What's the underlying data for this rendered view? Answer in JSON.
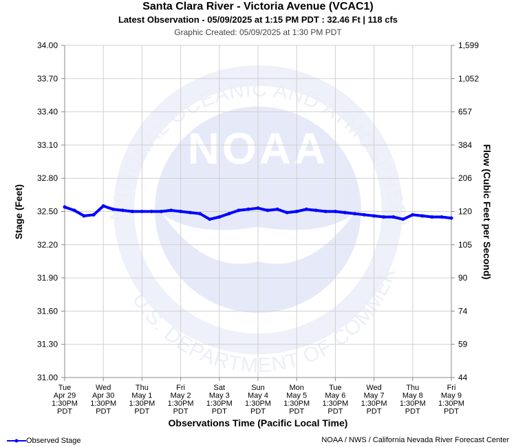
{
  "header": {
    "title": "Santa Clara River - Victoria Avenue (VCAC1)",
    "subtitle": "Latest Observation - 05/09/2025 at 1:15 PM PDT : 32.46 Ft | 118 cfs",
    "created": "Graphic Created: 05/09/2025 at 1:30 PM PDT"
  },
  "footer": {
    "legend_label": "Observed Stage",
    "credit": "NOAA / NWS / California Nevada River Forecast Center"
  },
  "watermark": {
    "logo_text": "NOAA",
    "ring_top": "NATIONAL OCEANIC AND ATMOSPHERIC ADMINISTRATION",
    "ring_bottom": "U.S. DEPARTMENT OF COMMERCE"
  },
  "colors": {
    "series": "#0000ff",
    "grid": "#d0d0d0",
    "watermark": "#e6eaf8"
  },
  "chart_data": {
    "type": "line",
    "ylabel": "Stage (Feet)",
    "ylabel_right": "Flow (Cubic Feet per Second)",
    "xlabel": "Observations Time (Pacific Local Time)",
    "ylim": [
      31.0,
      34.0
    ],
    "y_ticks": [
      "31.00",
      "31.30",
      "31.60",
      "31.90",
      "32.20",
      "32.50",
      "32.80",
      "33.10",
      "33.40",
      "33.70",
      "34.00"
    ],
    "y_ticks_right": [
      "44",
      "59",
      "74",
      "90",
      "105",
      "120",
      "206",
      "384",
      "657",
      "1,052",
      "1,599"
    ],
    "x_ticks": [
      [
        "Tue",
        "Apr 29",
        "1:30PM",
        "PDT"
      ],
      [
        "Wed",
        "Apr 30",
        "1:30PM",
        "PDT"
      ],
      [
        "Thu",
        "May 1",
        "1:30PM",
        "PDT"
      ],
      [
        "Fri",
        "May 2",
        "1:30PM",
        "PDT"
      ],
      [
        "Sat",
        "May 3",
        "1:30PM",
        "PDT"
      ],
      [
        "Sun",
        "May 4",
        "1:30PM",
        "PDT"
      ],
      [
        "Mon",
        "May 5",
        "1:30PM",
        "PDT"
      ],
      [
        "Tue",
        "May 6",
        "1:30PM",
        "PDT"
      ],
      [
        "Wed",
        "May 7",
        "1:30PM",
        "PDT"
      ],
      [
        "Thu",
        "May 8",
        "1:30PM",
        "PDT"
      ],
      [
        "Fri",
        "May 9",
        "1:30PM",
        "PDT"
      ]
    ],
    "grid": true,
    "legend": "bottom-left",
    "series": [
      {
        "name": "Observed Stage",
        "x_days": [
          0,
          0.25,
          0.5,
          0.75,
          1.0,
          1.25,
          1.5,
          1.75,
          2.0,
          2.25,
          2.5,
          2.75,
          3.0,
          3.25,
          3.5,
          3.75,
          4.0,
          4.25,
          4.5,
          4.75,
          5.0,
          5.25,
          5.5,
          5.75,
          6.0,
          6.25,
          6.5,
          6.75,
          7.0,
          7.25,
          7.5,
          7.75,
          8.0,
          8.25,
          8.5,
          8.75,
          9.0,
          9.25,
          9.5,
          9.75,
          10.0
        ],
        "values": [
          32.54,
          32.51,
          32.46,
          32.47,
          32.55,
          32.52,
          32.51,
          32.5,
          32.5,
          32.5,
          32.5,
          32.51,
          32.5,
          32.49,
          32.48,
          32.43,
          32.45,
          32.48,
          32.51,
          32.52,
          32.53,
          32.51,
          32.52,
          32.49,
          32.5,
          32.52,
          32.51,
          32.5,
          32.5,
          32.49,
          32.48,
          32.47,
          32.46,
          32.45,
          32.45,
          32.43,
          32.47,
          32.46,
          32.45,
          32.45,
          32.44
        ]
      }
    ]
  }
}
